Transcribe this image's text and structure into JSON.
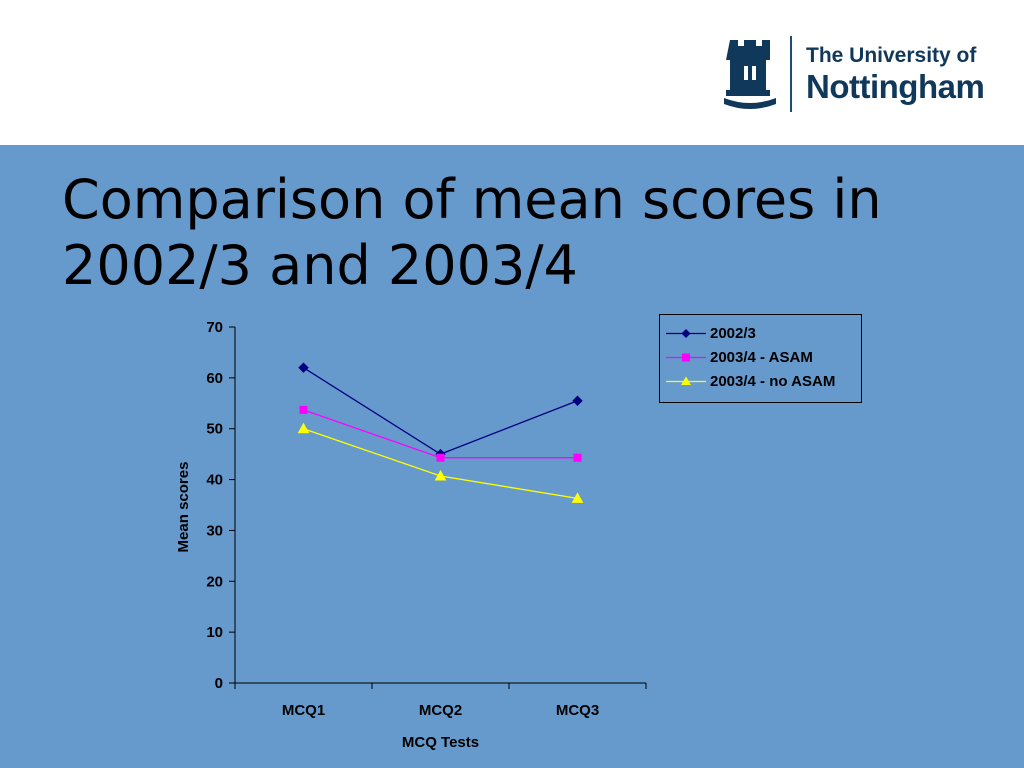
{
  "header": {
    "logo": {
      "line1": "The University of",
      "line2": "Nottingham",
      "icon": "castle-crest-icon",
      "color": "#10385a"
    }
  },
  "slide": {
    "title": "Comparison of mean scores in 2002/3 and 2003/4",
    "background": "#6699cc"
  },
  "chart_data": {
    "type": "line",
    "title": "",
    "xlabel": "MCQ Tests",
    "ylabel": "Mean scores",
    "categories": [
      "MCQ1",
      "MCQ2",
      "MCQ3"
    ],
    "ylim": [
      0,
      70
    ],
    "yticks": [
      0,
      10,
      20,
      30,
      40,
      50,
      60,
      70
    ],
    "grid": false,
    "legend_position": "right",
    "series": [
      {
        "name": "2002/3",
        "values": [
          62,
          45,
          55.5
        ],
        "color": "#000080",
        "marker": "diamond"
      },
      {
        "name": "2003/4 - ASAM",
        "values": [
          53.7,
          44.3,
          44.3
        ],
        "color": "#ff00ff",
        "marker": "square"
      },
      {
        "name": "2003/4 - no ASAM",
        "values": [
          50,
          40.7,
          36.3
        ],
        "color": "#ffff00",
        "marker": "triangle"
      }
    ]
  }
}
